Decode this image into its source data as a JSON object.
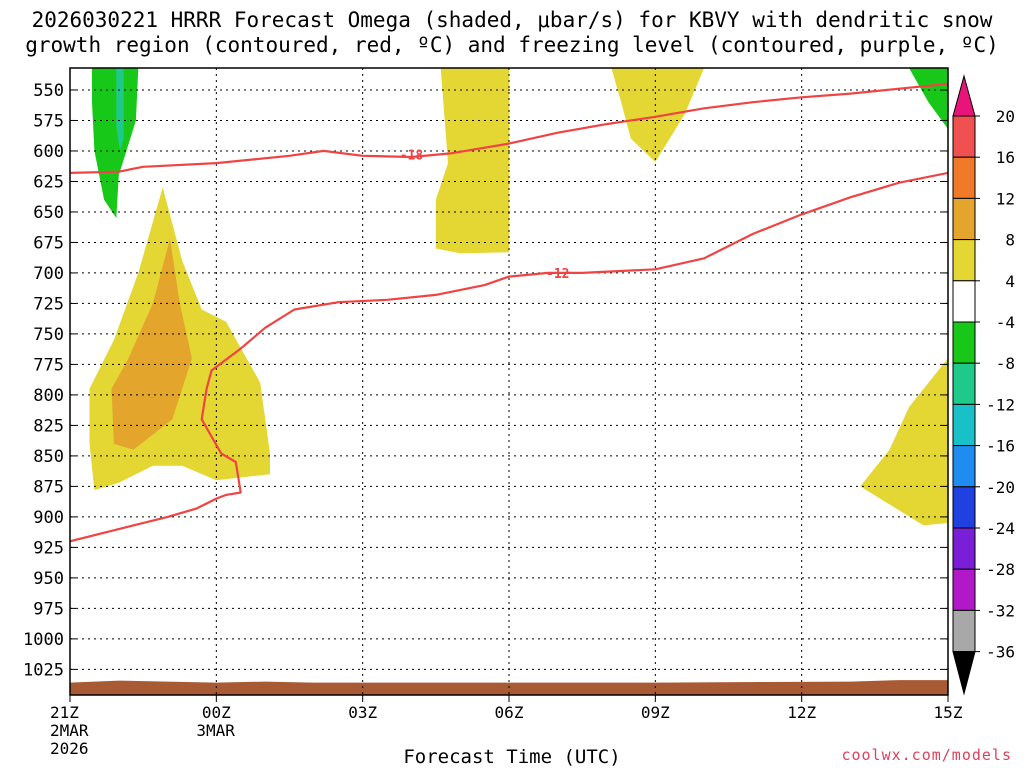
{
  "header": {
    "title_line1": "2026030221 HRRR Forecast Omega (shaded, μbar/s) for KBVY with dendritic snow",
    "title_line2": "growth region (contoured, red, ºC) and freezing level (contoured, purple, ºC)"
  },
  "footer": {
    "xlabel": "Forecast Time (UTC)",
    "credit": "coolwx.com/models"
  },
  "chart_data": {
    "type": "heatmap",
    "title": "2026030221 HRRR Forecast Omega (shaded, μbar/s) for KBVY with dendritic snow growth region (contoured, red, ºC) and freezing level (contoured, purple, ºC)",
    "xlabel": "Forecast Time (UTC)",
    "ylabel": "",
    "x_range_hours": [
      0,
      18
    ],
    "x_ticks": [
      {
        "hour": 0,
        "label": "21Z",
        "sub1": "2MAR",
        "sub2": "2026"
      },
      {
        "hour": 3,
        "label": "00Z",
        "sub1": "3MAR",
        "sub2": ""
      },
      {
        "hour": 6,
        "label": "03Z",
        "sub1": "",
        "sub2": ""
      },
      {
        "hour": 9,
        "label": "06Z",
        "sub1": "",
        "sub2": ""
      },
      {
        "hour": 12,
        "label": "09Z",
        "sub1": "",
        "sub2": ""
      },
      {
        "hour": 15,
        "label": "12Z",
        "sub1": "",
        "sub2": ""
      },
      {
        "hour": 18,
        "label": "15Z",
        "sub1": "",
        "sub2": ""
      }
    ],
    "y_axis": "pressure (mb), inverted",
    "y_range_mb": [
      532,
      1046
    ],
    "y_ticks": [
      550,
      575,
      600,
      625,
      650,
      675,
      700,
      725,
      750,
      775,
      800,
      825,
      850,
      875,
      900,
      925,
      950,
      975,
      1000,
      1025
    ],
    "grid": true,
    "colorbar": {
      "placement": "right",
      "labels": [
        "20",
        "16",
        "12",
        "8",
        "4",
        "-4",
        "-8",
        "-12",
        "-16",
        "-20",
        "-24",
        "-28",
        "-32",
        "-36"
      ],
      "bins": [
        {
          "range": [
            20,
            24
          ],
          "color": "#e8147a"
        },
        {
          "range": [
            16,
            20
          ],
          "color": "#f05050"
        },
        {
          "range": [
            12,
            16
          ],
          "color": "#f07a28"
        },
        {
          "range": [
            8,
            12
          ],
          "color": "#e3a52c"
        },
        {
          "range": [
            4,
            8
          ],
          "color": "#e4d633"
        },
        {
          "range": [
            -4,
            4
          ],
          "color": "#ffffff"
        },
        {
          "range": [
            -8,
            -4
          ],
          "color": "#18c818"
        },
        {
          "range": [
            -12,
            -8
          ],
          "color": "#1ec98a"
        },
        {
          "range": [
            -16,
            -12
          ],
          "color": "#18c0c8"
        },
        {
          "range": [
            -20,
            -16
          ],
          "color": "#1e8cf0"
        },
        {
          "range": [
            -24,
            -20
          ],
          "color": "#2040e0"
        },
        {
          "range": [
            -28,
            -24
          ],
          "color": "#7a1ed8"
        },
        {
          "range": [
            -32,
            -28
          ],
          "color": "#b018c8"
        },
        {
          "range": [
            -36,
            -32
          ],
          "color": "#a8a8a8"
        },
        {
          "range": [
            -40,
            -36
          ],
          "color": "#000000"
        }
      ]
    },
    "shaded_regions": [
      {
        "name": "omega 4-8 area 1",
        "level": "4 to 8",
        "color": "#e4d633",
        "polygon": [
          [
            0.5,
            878
          ],
          [
            0.4,
            840
          ],
          [
            0.4,
            795
          ],
          [
            0.9,
            755
          ],
          [
            1.4,
            700
          ],
          [
            1.9,
            630
          ],
          [
            2.3,
            690
          ],
          [
            2.7,
            730
          ],
          [
            3.2,
            740
          ],
          [
            3.9,
            790
          ],
          [
            4.1,
            848
          ],
          [
            4.1,
            865
          ],
          [
            3.0,
            870
          ],
          [
            2.3,
            858
          ],
          [
            1.7,
            858
          ],
          [
            1.0,
            872
          ]
        ]
      },
      {
        "name": "omega 8-12 core",
        "level": "8 to 12",
        "color": "#e3a52c",
        "polygon": [
          [
            0.9,
            840
          ],
          [
            0.85,
            795
          ],
          [
            1.2,
            770
          ],
          [
            1.7,
            725
          ],
          [
            2.05,
            672
          ],
          [
            2.25,
            725
          ],
          [
            2.5,
            770
          ],
          [
            2.1,
            820
          ],
          [
            1.3,
            845
          ]
        ]
      },
      {
        "name": "omega 4-8 area 2",
        "level": "4 to 8",
        "color": "#e4d633",
        "polygon": [
          [
            7.6,
            532
          ],
          [
            9.0,
            532
          ],
          [
            9.0,
            683
          ],
          [
            8.0,
            684
          ],
          [
            7.5,
            680
          ],
          [
            7.5,
            640
          ],
          [
            7.75,
            610
          ]
        ]
      },
      {
        "name": "omega 4-8 area 3",
        "level": "4 to 8",
        "color": "#e4d633",
        "polygon": [
          [
            11.1,
            532
          ],
          [
            13.0,
            532
          ],
          [
            12.6,
            570
          ],
          [
            12.0,
            609
          ],
          [
            11.5,
            590
          ],
          [
            11.3,
            560
          ]
        ]
      },
      {
        "name": "omega 4-8 area 4",
        "level": "4 to 8",
        "color": "#e4d633",
        "polygon": [
          [
            16.2,
            875
          ],
          [
            16.8,
            845
          ],
          [
            17.2,
            810
          ],
          [
            18.0,
            770
          ],
          [
            18.0,
            905
          ],
          [
            17.5,
            907
          ]
        ]
      },
      {
        "name": "omega -8 to -4 area 1",
        "level": "-8 to -4",
        "color": "#18c818",
        "polygon": [
          [
            0.45,
            532
          ],
          [
            1.4,
            532
          ],
          [
            1.35,
            575
          ],
          [
            1.0,
            620
          ],
          [
            0.95,
            655
          ],
          [
            0.7,
            640
          ],
          [
            0.5,
            600
          ],
          [
            0.45,
            560
          ]
        ]
      },
      {
        "name": "omega -12 to -8 core",
        "level": "-12 to -8",
        "color": "#1ec98a",
        "polygon": [
          [
            0.95,
            532
          ],
          [
            1.1,
            532
          ],
          [
            1.1,
            590
          ],
          [
            1.02,
            600
          ],
          [
            0.95,
            580
          ]
        ]
      },
      {
        "name": "omega -8 to -4 area 2",
        "level": "-8 to -4",
        "color": "#18c818",
        "polygon": [
          [
            17.2,
            532
          ],
          [
            18.0,
            532
          ],
          [
            18.0,
            582
          ],
          [
            17.6,
            560
          ]
        ]
      }
    ],
    "contours": [
      {
        "name": "-18 isotherm",
        "label": "-18",
        "color": "#f04444",
        "label_at": [
          7.0,
          603
        ],
        "points": [
          [
            0,
            618
          ],
          [
            1.0,
            617
          ],
          [
            1.5,
            613
          ],
          [
            3.0,
            610
          ],
          [
            4.5,
            604
          ],
          [
            5.2,
            600
          ],
          [
            6.0,
            604
          ],
          [
            7.0,
            605
          ],
          [
            7.8,
            602
          ],
          [
            9.0,
            594
          ],
          [
            10.0,
            585
          ],
          [
            11.0,
            578
          ],
          [
            12.0,
            572
          ],
          [
            13.0,
            565
          ],
          [
            14.0,
            560
          ],
          [
            15.0,
            556
          ],
          [
            16.0,
            553
          ],
          [
            17.0,
            549
          ],
          [
            18.0,
            545
          ]
        ]
      },
      {
        "name": "-12 isotherm",
        "label": "-12",
        "color": "#f04444",
        "label_at": [
          10.0,
          700
        ],
        "points": [
          [
            0,
            920
          ],
          [
            1.0,
            910
          ],
          [
            2.0,
            900
          ],
          [
            2.6,
            893
          ],
          [
            3.0,
            885
          ],
          [
            3.2,
            882
          ],
          [
            3.5,
            880
          ],
          [
            3.4,
            855
          ],
          [
            3.1,
            848
          ],
          [
            2.7,
            820
          ],
          [
            2.8,
            795
          ],
          [
            2.9,
            780
          ],
          [
            3.5,
            762
          ],
          [
            4.0,
            745
          ],
          [
            4.6,
            730
          ],
          [
            5.5,
            724
          ],
          [
            6.5,
            722
          ],
          [
            7.5,
            718
          ],
          [
            8.5,
            710
          ],
          [
            9.0,
            703
          ],
          [
            9.8,
            700
          ],
          [
            10.5,
            700
          ],
          [
            11.5,
            698
          ],
          [
            12.0,
            697
          ],
          [
            13.0,
            688
          ],
          [
            14.0,
            668
          ],
          [
            15.0,
            652
          ],
          [
            16.0,
            638
          ],
          [
            17.0,
            626
          ],
          [
            18.0,
            618
          ]
        ]
      }
    ],
    "terrain_band": {
      "color": "#a85a35",
      "top_mb_approx": 1035
    }
  }
}
